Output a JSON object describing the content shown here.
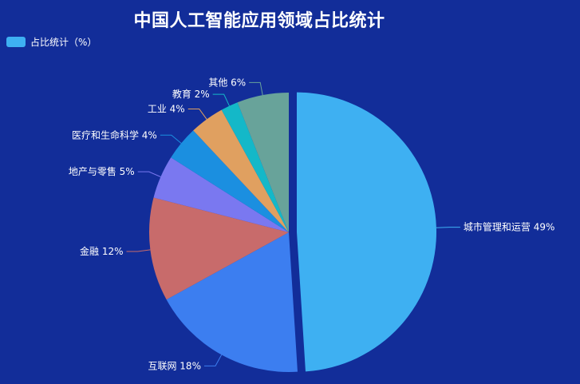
{
  "chart_data": {
    "type": "pie",
    "title": "中国人工智能应用领域占比统计",
    "legend": {
      "placement": "top-left",
      "entries": [
        "占比统计（%）"
      ],
      "swatch_color": "#3eb0f2"
    },
    "unit": "%",
    "slices": [
      {
        "label": "城市管理和运营",
        "value": 49,
        "color": "#3eb0f2",
        "text": "城市管理和运营 49%"
      },
      {
        "label": "互联网",
        "value": 18,
        "color": "#3c7ef0",
        "text": "互联网 18%"
      },
      {
        "label": "金融",
        "value": 12,
        "color": "#c86b6b",
        "text": "金融 12%"
      },
      {
        "label": "地产与零售",
        "value": 5,
        "color": "#7a78f0",
        "text": "地产与零售 5%"
      },
      {
        "label": "医疗和生命科学",
        "value": 4,
        "color": "#1b8fe0",
        "text": "医疗和生命科学 4%"
      },
      {
        "label": "工业",
        "value": 4,
        "color": "#e0a060",
        "text": "工业 4%"
      },
      {
        "label": "教育",
        "value": 2,
        "color": "#14b8c8",
        "text": "教育 2%"
      },
      {
        "label": "其他",
        "value": 6,
        "color": "#68a39a",
        "text": "其他 6%"
      }
    ]
  }
}
